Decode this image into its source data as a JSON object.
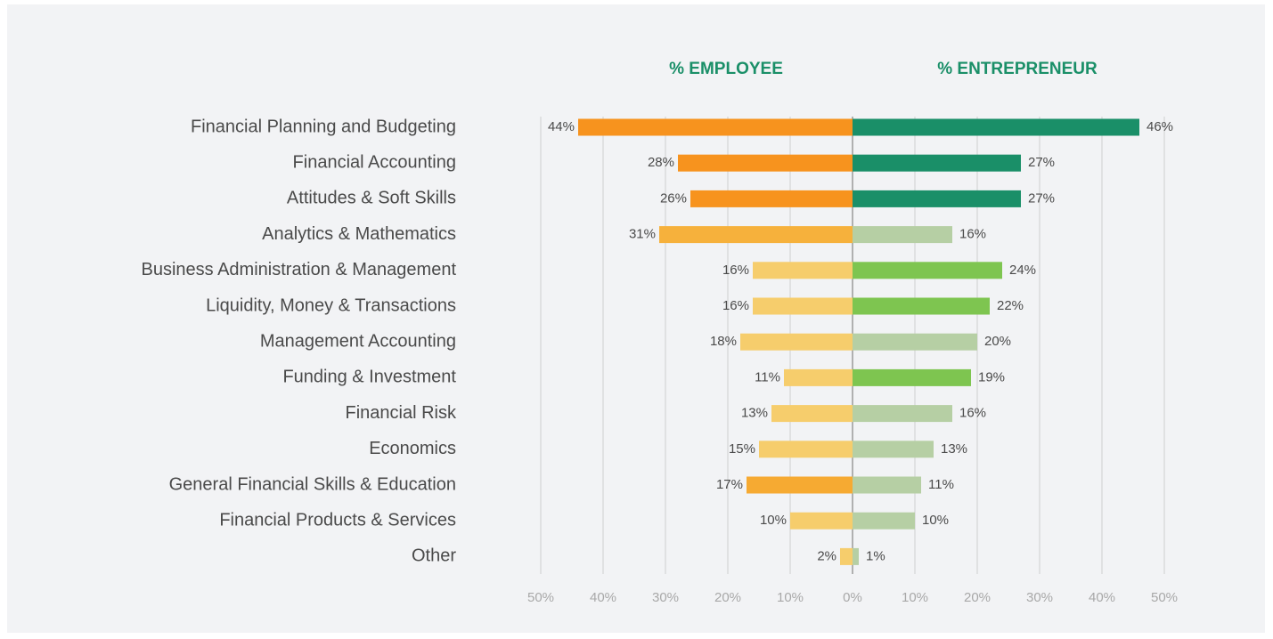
{
  "chart_data": {
    "type": "butterfly",
    "categories": [
      "Financial Planning and Budgeting",
      "Financial Accounting",
      "Attitudes & Soft Skills",
      "Analytics & Mathematics",
      "Business Administration & Management",
      "Liquidity, Money & Transactions",
      "Management Accounting",
      "Funding & Investment",
      "Financial Risk",
      "Economics",
      "General Financial Skills & Education",
      "Financial Products & Services",
      "Other"
    ],
    "series": [
      {
        "name": "% EMPLOYEE",
        "side": "left",
        "values": [
          44,
          28,
          26,
          31,
          16,
          16,
          18,
          11,
          13,
          15,
          17,
          10,
          2
        ],
        "value_labels": [
          "44%",
          "28%",
          "26%",
          "31%",
          "16%",
          "16%",
          "18%",
          "11%",
          "13%",
          "15%",
          "17%",
          "10%",
          "2%"
        ],
        "colors": [
          "#f7931e",
          "#f7931e",
          "#f7931e",
          "#f6b13c",
          "#f6cd6c",
          "#f6cd6c",
          "#f6cd6c",
          "#f6cd6c",
          "#f6cd6c",
          "#f6cd6c",
          "#f6aa32",
          "#f6cd6c",
          "#f6cd6c"
        ]
      },
      {
        "name": "% ENTREPRENEUR",
        "side": "right",
        "values": [
          46,
          27,
          27,
          16,
          24,
          22,
          20,
          19,
          16,
          13,
          11,
          10,
          1
        ],
        "value_labels": [
          "46%",
          "27%",
          "27%",
          "16%",
          "24%",
          "22%",
          "20%",
          "19%",
          "16%",
          "13%",
          "11%",
          "10%",
          "1%"
        ],
        "colors": [
          "#1a8f68",
          "#1a8f68",
          "#1a8f68",
          "#b6cfa4",
          "#7ec550",
          "#7ec550",
          "#b6cfa4",
          "#7ec550",
          "#b6cfa4",
          "#b6cfa4",
          "#b6cfa4",
          "#b6cfa4",
          "#b6cfa4"
        ]
      }
    ],
    "xlim_left": [
      50,
      0
    ],
    "xticks_left": [
      {
        "value": 50,
        "label": "50%"
      },
      {
        "value": 40,
        "label": "40%"
      },
      {
        "value": 30,
        "label": "30%"
      },
      {
        "value": 20,
        "label": "20%"
      },
      {
        "value": 10,
        "label": "10%"
      },
      {
        "value": 0,
        "label": "0%"
      }
    ],
    "xlim_right": [
      0,
      50
    ],
    "xticks_right": [
      {
        "value": 10,
        "label": "10%"
      },
      {
        "value": 20,
        "label": "20%"
      },
      {
        "value": 30,
        "label": "30%"
      },
      {
        "value": 40,
        "label": "40%"
      },
      {
        "value": 50,
        "label": "50%"
      }
    ],
    "grid": true
  }
}
